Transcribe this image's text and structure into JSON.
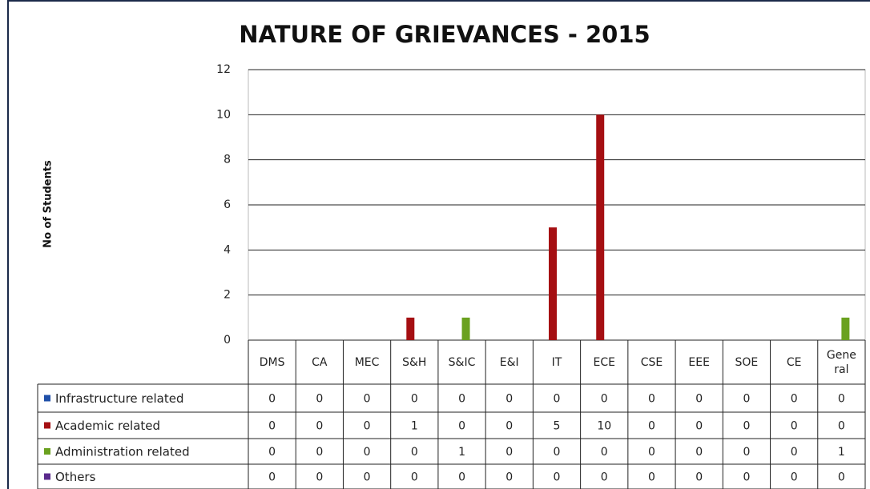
{
  "chart_data": {
    "type": "bar",
    "title": "NATURE OF GRIEVANCES - 2015",
    "y_label": "No of Students",
    "categories": [
      "DMS",
      "CA",
      "MEC",
      "S&H",
      "S&IC",
      "E&I",
      "IT",
      "ECE",
      "CSE",
      "EEE",
      "SOE",
      "CE",
      "General"
    ],
    "series": [
      {
        "name": "Infrastructure related",
        "color": "#1f4fa8",
        "values": [
          0,
          0,
          0,
          0,
          0,
          0,
          0,
          0,
          0,
          0,
          0,
          0,
          0
        ]
      },
      {
        "name": "Academic related",
        "color": "#a50f12",
        "values": [
          0,
          0,
          0,
          1,
          0,
          0,
          5,
          10,
          0,
          0,
          0,
          0,
          0
        ]
      },
      {
        "name": "Administration related",
        "color": "#6aa11f",
        "values": [
          0,
          0,
          0,
          0,
          1,
          0,
          0,
          0,
          0,
          0,
          0,
          0,
          1
        ]
      },
      {
        "name": "Others",
        "color": "#5a2a8c",
        "values": [
          0,
          0,
          0,
          0,
          0,
          0,
          0,
          0,
          0,
          0,
          0,
          0,
          0
        ]
      }
    ],
    "ylim": [
      0,
      12
    ],
    "yticks": [
      0,
      2,
      4,
      6,
      8,
      10,
      12
    ],
    "grid": true
  }
}
